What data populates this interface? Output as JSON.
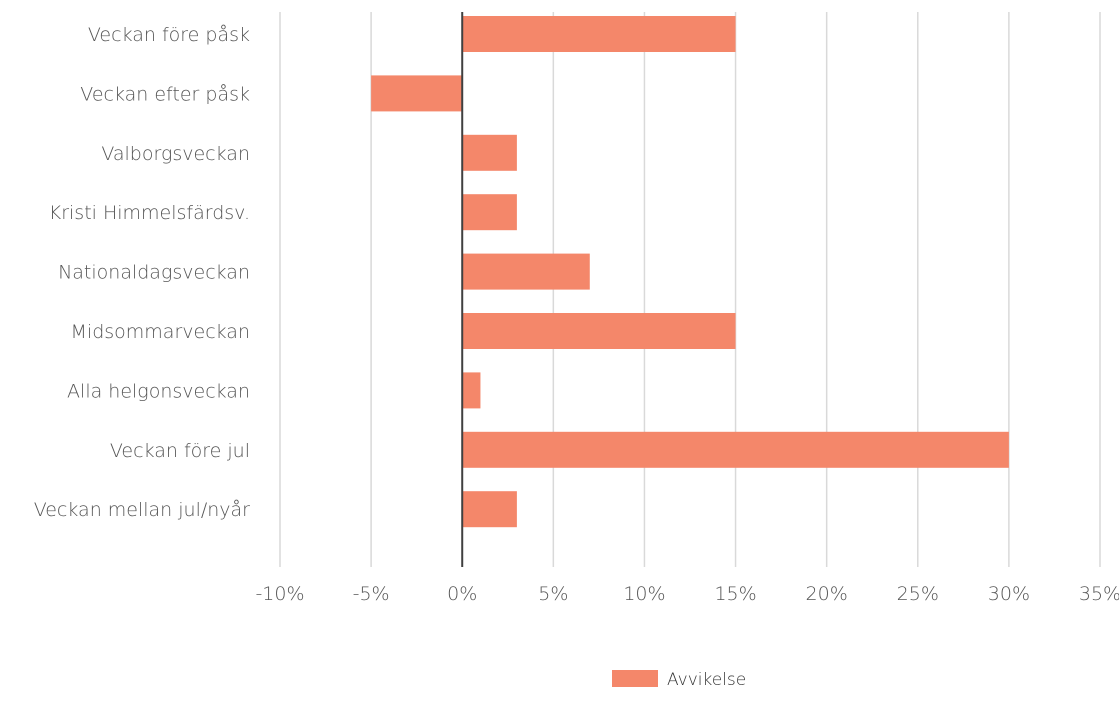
{
  "chart_data": {
    "type": "bar",
    "orientation": "horizontal",
    "categories": [
      "Veckan före påsk",
      "Veckan efter påsk",
      "Valborgsveckan",
      "Kristi Himmelsfärdsv.",
      "Nationaldagsveckan",
      "Midsommarveckan",
      "Alla helgonsveckan",
      "Veckan före jul",
      "Veckan mellan jul/nyår"
    ],
    "series": [
      {
        "name": "Avvikelse",
        "values": [
          15,
          -5,
          3,
          3,
          7,
          15,
          1,
          30,
          3
        ],
        "color": "#f4876a"
      }
    ],
    "xlim": [
      -10,
      35
    ],
    "xticks": [
      -10,
      -5,
      0,
      5,
      10,
      15,
      20,
      25,
      30,
      35
    ],
    "tick_labels": [
      "-10%",
      "-5%",
      "0%",
      "5%",
      "10%",
      "15%",
      "20%",
      "25%",
      "30%",
      "35%"
    ],
    "value_unit": "%",
    "title": "",
    "xlabel": "",
    "ylabel": "",
    "grid": "vertical",
    "legend": "bottom",
    "colors": {
      "bar": "#f4876a",
      "grid": "#d9d9d9",
      "zero_line": "#404040",
      "text": "#555555"
    }
  }
}
